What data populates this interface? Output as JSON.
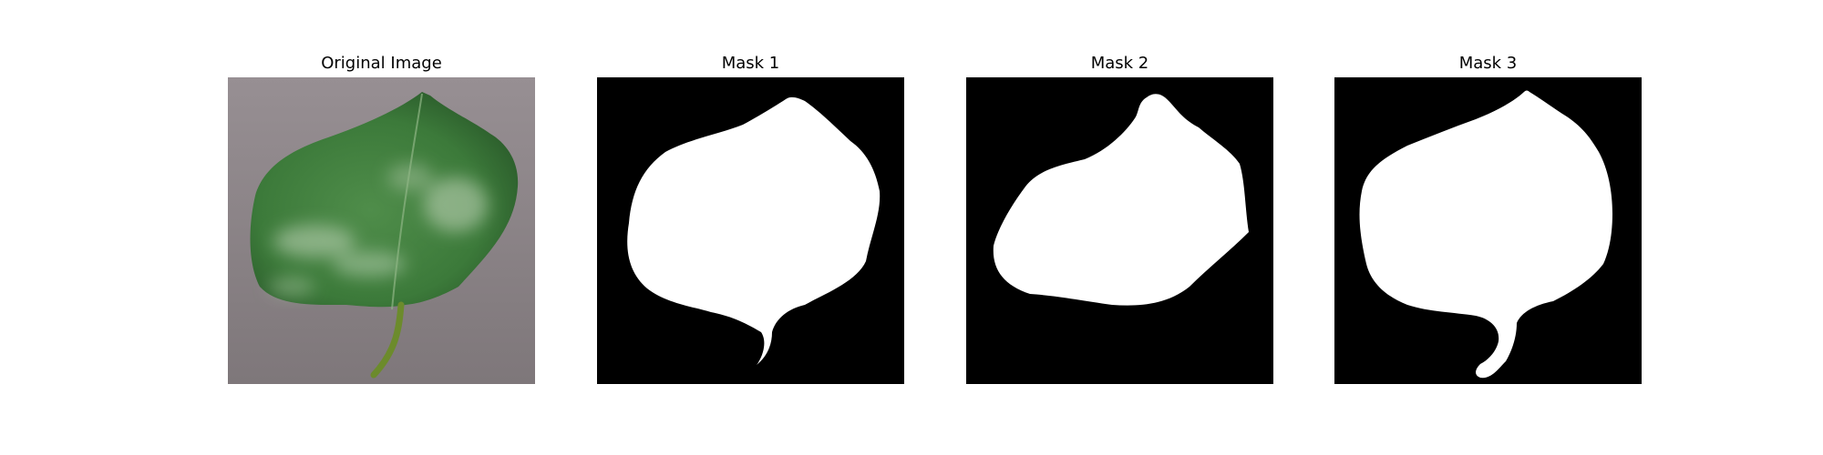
{
  "figure": {
    "panels": [
      {
        "title": "Original Image",
        "kind": "photo"
      },
      {
        "title": "Mask 1",
        "kind": "mask"
      },
      {
        "title": "Mask 2",
        "kind": "mask"
      },
      {
        "title": "Mask 3",
        "kind": "mask"
      }
    ]
  },
  "colors": {
    "page_background": "#ffffff",
    "mask_background": "#000000",
    "mask_foreground": "#ffffff",
    "photo_background": "#8e868a",
    "leaf_green": "#3f7f3c",
    "leaf_dark": "#2d5f2d",
    "leaf_light": "#a8c6a0",
    "stem": "#6c8b2c"
  }
}
